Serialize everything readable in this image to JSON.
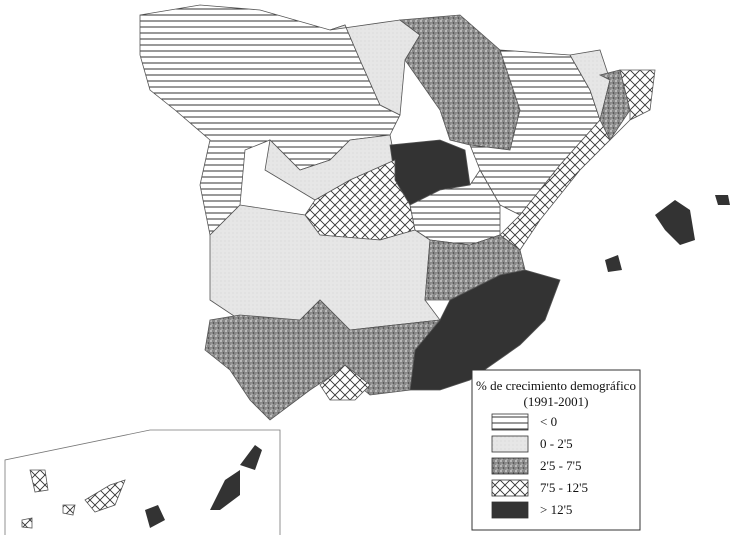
{
  "legend": {
    "title": "% de crecimiento demográfico",
    "subtitle": "(1991-2001)",
    "items": [
      {
        "label": "< 0"
      },
      {
        "label": "0 - 2'5"
      },
      {
        "label": "2'5 - 7'5"
      },
      {
        "label": "7'5 - 12'5"
      },
      {
        "label": "> 12'5"
      }
    ]
  }
}
